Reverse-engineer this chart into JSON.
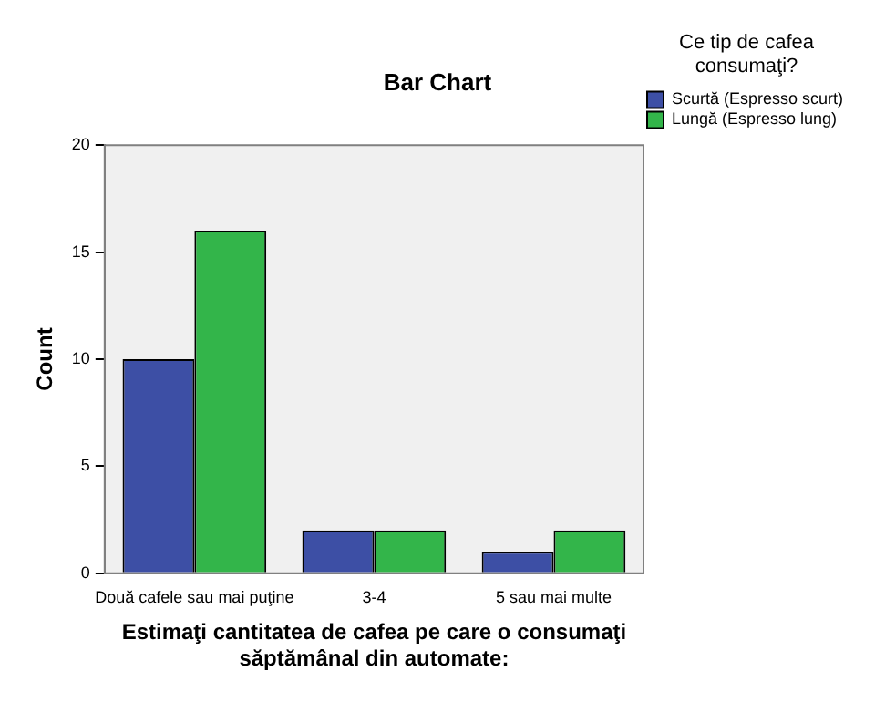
{
  "chart_data": {
    "type": "bar",
    "title": "Bar Chart",
    "xlabel": "Estimaţi cantitatea de cafea pe care o consumaţi săptămânal din automate:",
    "ylabel": "Count",
    "legend_title": "Ce tip de cafea consumaţi?",
    "categories": [
      "Două cafele sau mai puţine",
      "3-4",
      "5 sau mai multe"
    ],
    "series": [
      {
        "name": "Scurtă (Espresso scurt)",
        "color": "#3d4fa5",
        "values": [
          10,
          2,
          1
        ]
      },
      {
        "name": "Lungă (Espresso lung)",
        "color": "#33b54a",
        "values": [
          16,
          2,
          2
        ]
      }
    ],
    "ylim": [
      0,
      20
    ],
    "yticks": [
      0,
      5,
      10,
      15,
      20
    ],
    "grid": false,
    "legend": "right"
  }
}
